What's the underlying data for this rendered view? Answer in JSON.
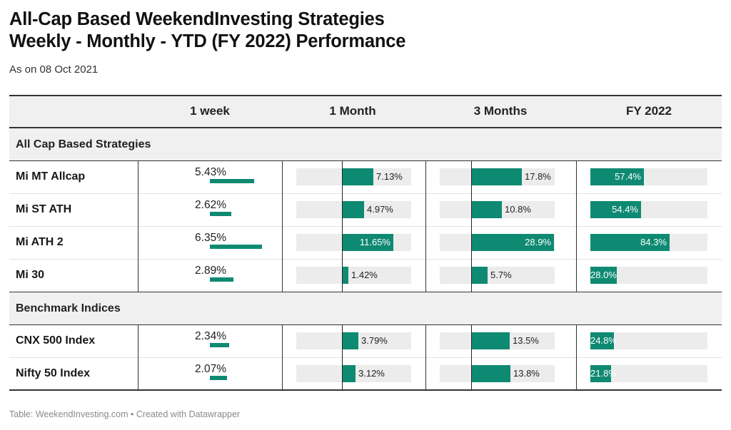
{
  "title_line1": "All-Cap Based WeekendInvesting Strategies",
  "title_line2": "Weekly - Monthly - YTD (FY 2022)  Performance",
  "subtitle": "As on 08 Oct 2021",
  "footer": "Table: WeekendInvesting.com • Created with Datawrapper",
  "colors": {
    "bar": "#0f8a72",
    "track": "#ececec",
    "header_bg": "#f0f0f0"
  },
  "chart_data": {
    "type": "table",
    "columns": [
      "",
      "1 week",
      "1 Month",
      "3 Months",
      "FY 2022"
    ],
    "groups": [
      {
        "label": "All Cap Based Strategies",
        "rows": [
          {
            "name": "Mi MT Allcap",
            "week": 5.43,
            "week_label": "5.43%",
            "month": 7.13,
            "month_label": "7.13%",
            "three_months": 17.8,
            "three_months_label": "17.8%",
            "fy": 57.4,
            "fy_label": "57.4%"
          },
          {
            "name": "Mi ST ATH",
            "week": 2.62,
            "week_label": "2.62%",
            "month": 4.97,
            "month_label": "4.97%",
            "three_months": 10.8,
            "three_months_label": "10.8%",
            "fy": 54.4,
            "fy_label": "54.4%"
          },
          {
            "name": "Mi ATH 2",
            "week": 6.35,
            "week_label": "6.35%",
            "month": 11.65,
            "month_label": "11.65%",
            "three_months": 28.9,
            "three_months_label": "28.9%",
            "fy": 84.3,
            "fy_label": "84.3%"
          },
          {
            "name": "Mi 30",
            "week": 2.89,
            "week_label": "2.89%",
            "month": 1.42,
            "month_label": "1.42%",
            "three_months": 5.7,
            "three_months_label": "5.7%",
            "fy": 28.0,
            "fy_label": "28.0%"
          }
        ]
      },
      {
        "label": "Benchmark Indices",
        "rows": [
          {
            "name": "CNX 500 Index",
            "week": 2.34,
            "week_label": "2.34%",
            "month": 3.79,
            "month_label": "3.79%",
            "three_months": 13.5,
            "three_months_label": "13.5%",
            "fy": 24.8,
            "fy_label": "24.8%"
          },
          {
            "name": "Nifty 50 Index",
            "week": 2.07,
            "week_label": "2.07%",
            "month": 3.12,
            "month_label": "3.12%",
            "three_months": 13.8,
            "three_months_label": "13.8%",
            "fy": 21.8,
            "fy_label": "21.8%"
          }
        ]
      }
    ]
  }
}
